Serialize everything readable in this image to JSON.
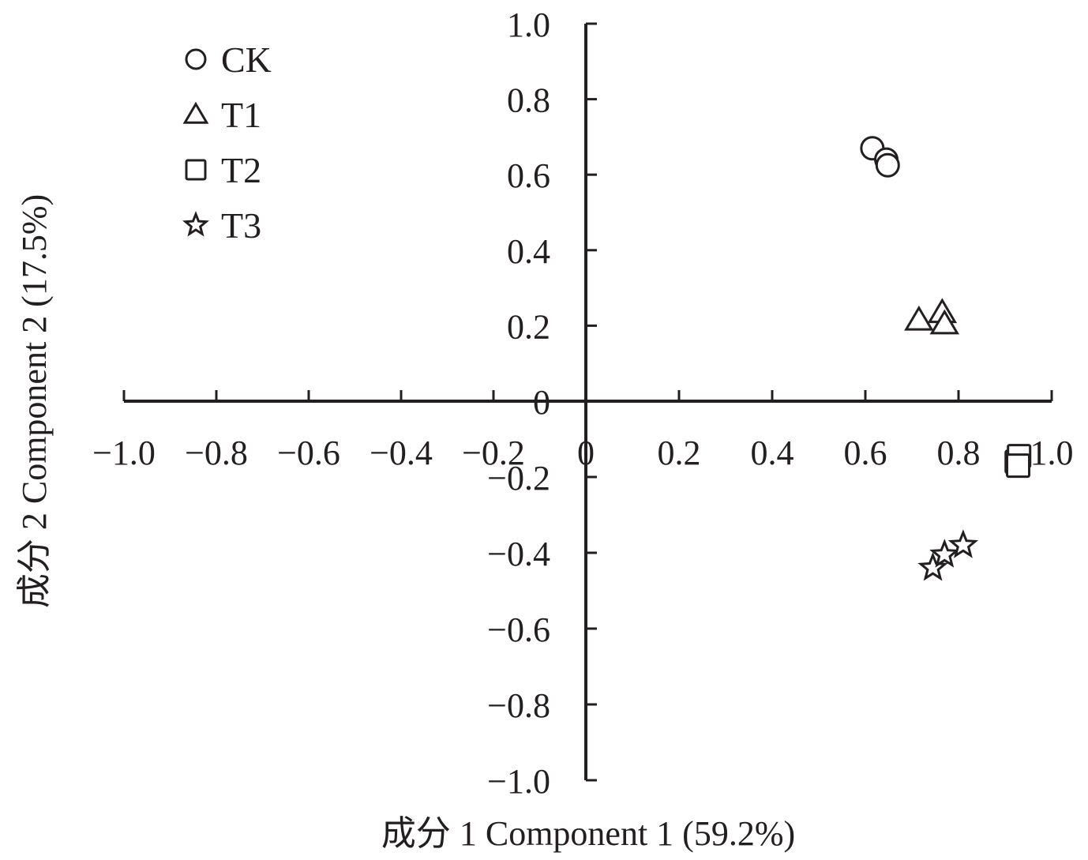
{
  "chart_data": {
    "type": "scatter",
    "title": "",
    "xlabel": "成分 1 Component 1 (59.2%)",
    "ylabel": "成分 2 Component 2 (17.5%)",
    "xlim": [
      -1.0,
      1.0
    ],
    "ylim": [
      -1.0,
      1.0
    ],
    "x_ticks": [
      "−1.0",
      "−0.8",
      "−0.6",
      "−0.4",
      "−0.2",
      "0",
      "0.2",
      "0.4",
      "0.6",
      "0.8",
      "1.0"
    ],
    "y_ticks": [
      "1.0",
      "0.8",
      "0.6",
      "0.4",
      "0.2",
      "0",
      "−0.2",
      "−0.4",
      "−0.6",
      "−0.8",
      "−1.0"
    ],
    "grid": false,
    "legend_position": "top-left",
    "series": [
      {
        "name": "CK",
        "marker": "circle",
        "points": [
          [
            0.615,
            0.67
          ],
          [
            0.645,
            0.64
          ],
          [
            0.648,
            0.625
          ]
        ]
      },
      {
        "name": "T1",
        "marker": "triangle",
        "points": [
          [
            0.715,
            0.215
          ],
          [
            0.765,
            0.235
          ],
          [
            0.77,
            0.205
          ]
        ]
      },
      {
        "name": "T2",
        "marker": "square",
        "points": [
          [
            0.925,
            -0.16
          ],
          [
            0.93,
            -0.145
          ],
          [
            0.928,
            -0.17
          ]
        ]
      },
      {
        "name": "T3",
        "marker": "star",
        "points": [
          [
            0.745,
            -0.44
          ],
          [
            0.77,
            -0.405
          ],
          [
            0.81,
            -0.38
          ]
        ]
      }
    ],
    "colors": {
      "ink": "#231f20",
      "marker_fill": "#ffffff"
    }
  }
}
